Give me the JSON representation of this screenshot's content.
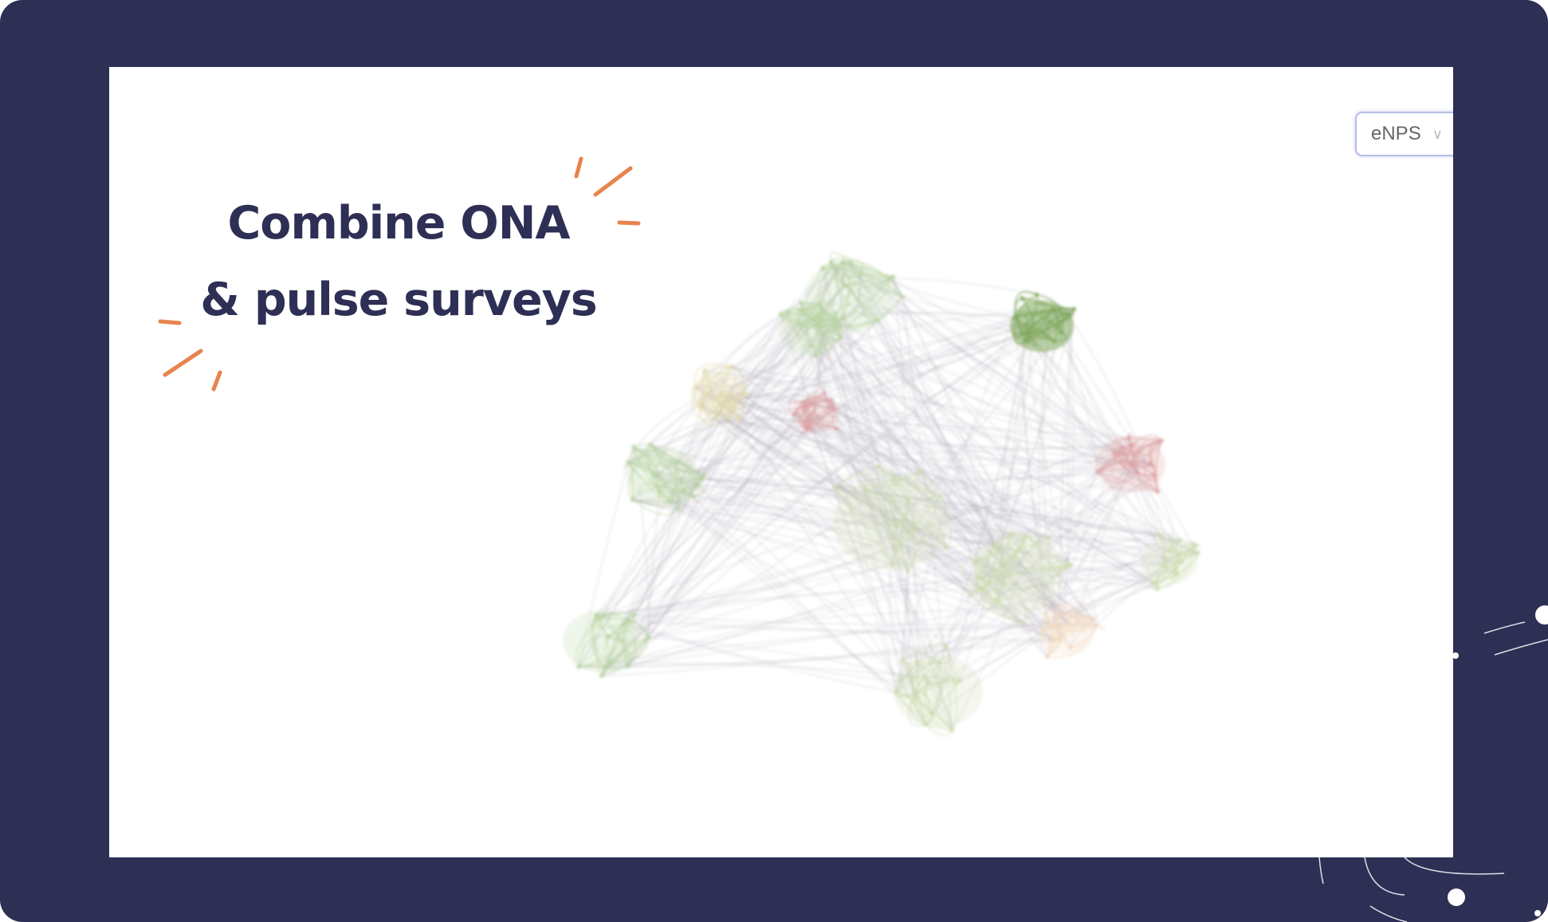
{
  "headline": {
    "line1": "Combine ONA",
    "line2": "& pulse surveys"
  },
  "metric_select": {
    "selected": "eNPS",
    "icon": "chevron-down-icon"
  },
  "colors": {
    "background": "#2e2f55",
    "accent": "#e8834e",
    "text": "#2e2f55",
    "positive": "#8fb36a",
    "negative": "#d98a8a",
    "neutral": "#e6e6c2"
  },
  "graph": {
    "type": "network",
    "cluster_colors": [
      "#b7d4a0",
      "#7faa5c",
      "#e0a0a0",
      "#e2d9a8",
      "#cbdcae",
      "#f3d9c0"
    ]
  }
}
